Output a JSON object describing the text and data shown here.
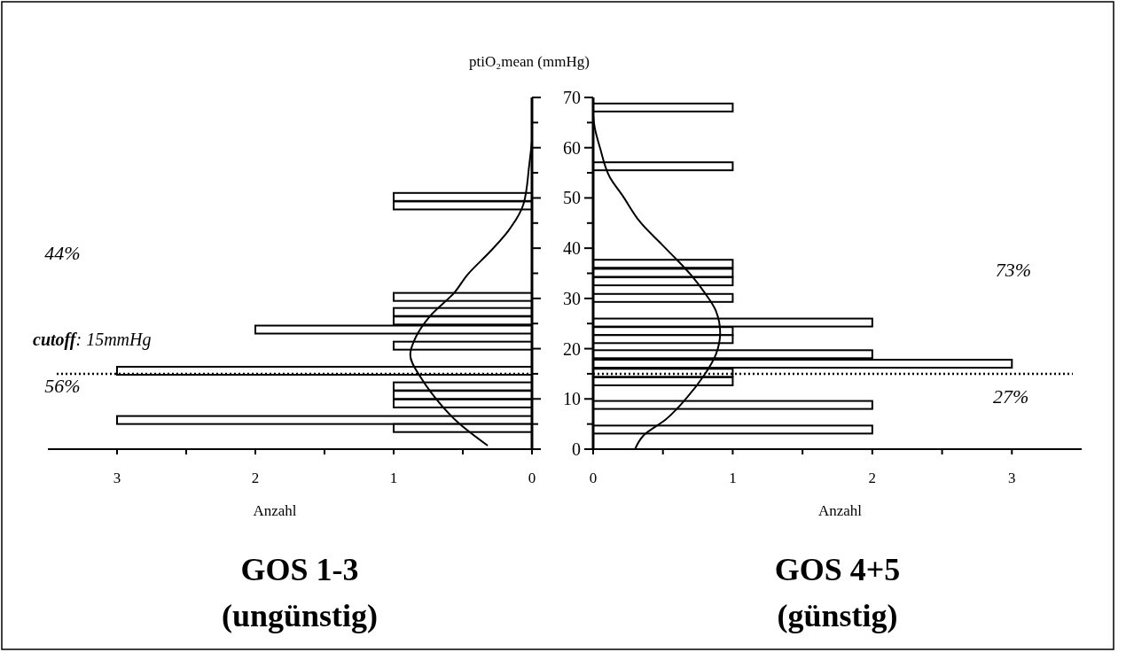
{
  "chart_data": [
    {
      "type": "bar",
      "orientation": "horizontal",
      "title": "GOS 1-3",
      "subtitle": "(ungünstig)",
      "xlabel": "Anzahl",
      "tick_labels": "x",
      "annotations": [
        "44%",
        "56%"
      ],
      "ref_lines": [
        {
          "axis": "y",
          "value": 15,
          "label": "cutoff: 15mmHg",
          "line_style": "dotted",
          "color": "#000000"
        }
      ],
      "xlim": [
        3.5,
        0
      ],
      "xticks": [
        3,
        {
          "value": 2.5,
          "label": null
        },
        2,
        {
          "value": 1.5,
          "label": null
        },
        1,
        {
          "value": 0.5,
          "label": null
        },
        0
      ],
      "ylim": [
        0,
        70
      ],
      "yticks": [
        0,
        {
          "value": 5,
          "label": null
        },
        10,
        {
          "value": 15,
          "label": null
        },
        20,
        {
          "value": 25,
          "label": null
        },
        30,
        {
          "value": 35,
          "label": null
        },
        40,
        {
          "value": 45,
          "label": null
        },
        50,
        {
          "value": 55,
          "label": null
        },
        60,
        {
          "value": 65,
          "label": null
        },
        70
      ],
      "series": [
        {
          "color": "#ffffff",
          "x": [
            50.2,
            48.5,
            30.3,
            27.3,
            25.6,
            23.8,
            20.6,
            15.6,
            12.5,
            10.8,
            9.1,
            5.8,
            4.2
          ],
          "values": [
            1,
            1,
            1,
            1,
            1,
            2,
            1,
            3,
            1,
            1,
            1,
            3,
            1
          ]
        },
        {
          "type": "line",
          "color": "#000000",
          "x": [
            0.7,
            5.2,
            11.3,
            14.1,
            18.8,
            22.3,
            26.4,
            31.2,
            34.6,
            39.4,
            43.5,
            48.9,
            56.5,
            61.3
          ],
          "values": [
            0.32,
            0.53,
            0.73,
            0.8,
            0.88,
            0.84,
            0.74,
            0.56,
            0.47,
            0.3,
            0.17,
            0.06,
            0.02,
            0
          ]
        }
      ]
    },
    {
      "type": "bar",
      "orientation": "horizontal",
      "title": "GOS 4+5",
      "subtitle": "(günstig)",
      "xlabel": "Anzahl",
      "ylabel": "ptiO₂mean (mmHg)",
      "annotations": [
        "73%",
        "27%"
      ],
      "ref_lines": [
        {
          "axis": "y",
          "value": 15,
          "line_style": "dotted",
          "color": "#000000"
        }
      ],
      "xlim": [
        0,
        3.5
      ],
      "xticks": [
        0,
        {
          "value": 0.5,
          "label": null
        },
        1,
        {
          "value": 1.5,
          "label": null
        },
        2,
        {
          "value": 2.5,
          "label": null
        },
        3
      ],
      "ylim": [
        0,
        70
      ],
      "yticks": [
        0,
        {
          "value": 5,
          "label": null
        },
        10,
        {
          "value": 15,
          "label": null
        },
        20,
        {
          "value": 25,
          "label": null
        },
        30,
        {
          "value": 35,
          "label": null
        },
        40,
        {
          "value": 45,
          "label": null
        },
        50,
        {
          "value": 55,
          "label": null
        },
        60,
        {
          "value": 65,
          "label": null
        },
        70
      ],
      "series": [
        {
          "color": "#ffffff",
          "x": [
            68.0,
            56.3,
            36.9,
            35.1,
            33.4,
            30.1,
            25.2,
            23.5,
            21.9,
            18.9,
            17.0,
            15.2,
            13.5,
            8.8,
            3.9
          ],
          "values": [
            1,
            1,
            1,
            1,
            1,
            1,
            2,
            1,
            1,
            2,
            3,
            1,
            1,
            2,
            2
          ]
        },
        {
          "type": "line",
          "color": "#000000",
          "x": [
            0,
            2.7,
            5.9,
            10.2,
            14.5,
            18.9,
            23.2,
            27.5,
            31.1,
            34.7,
            40.8,
            45.1,
            50.5,
            54.1,
            59.9,
            64.2,
            66.4
          ],
          "values": [
            0.3,
            0.36,
            0.52,
            0.67,
            0.79,
            0.88,
            0.91,
            0.88,
            0.8,
            0.7,
            0.49,
            0.34,
            0.21,
            0.12,
            0.05,
            0.01,
            0
          ]
        }
      ]
    }
  ]
}
